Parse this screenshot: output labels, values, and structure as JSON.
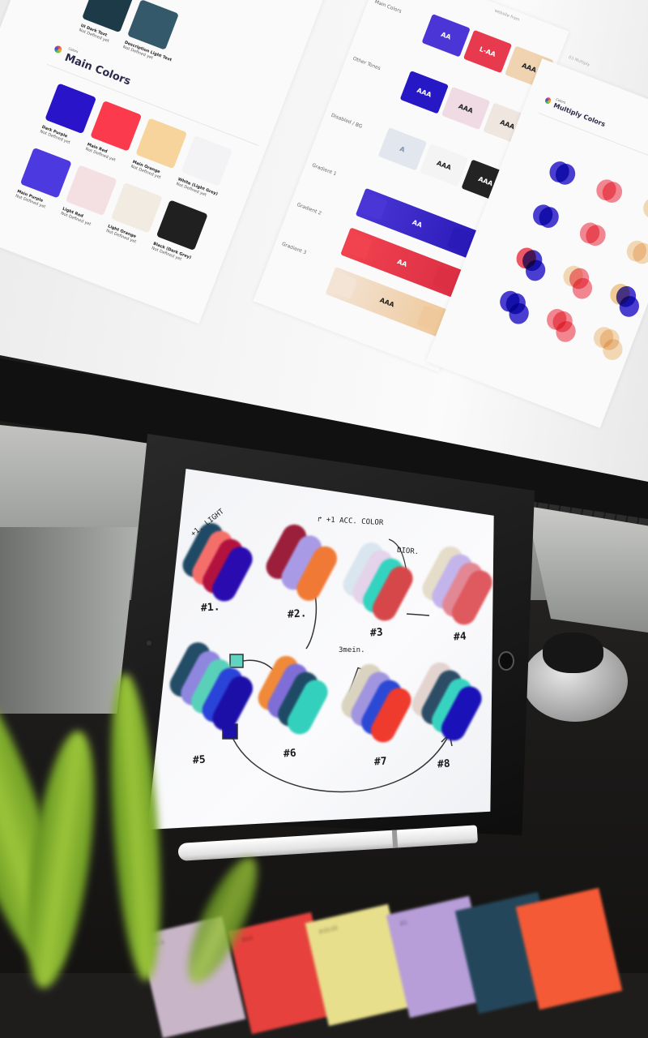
{
  "monitor": {
    "card_left": {
      "top_swatches": [
        {
          "name": "UI Dark Text",
          "note": "Not Defined yet",
          "color": "#1d3a48"
        },
        {
          "name": "Description Light Text",
          "note": "Not Defined yet",
          "color": "#33596a"
        }
      ],
      "section_kicker": "Colors",
      "title": "Main Colors",
      "swatches": [
        {
          "name": "Dark Purple",
          "note": "Not Defined yet",
          "color": "#2a14c9"
        },
        {
          "name": "Main Red",
          "note": "Not Defined yet",
          "color": "#fb3a4d"
        },
        {
          "name": "Main Orange",
          "note": "Not Defined yet",
          "color": "#f6d49c"
        },
        {
          "name": "White (Light Grey)",
          "note": "Not Defined yet",
          "color": "#f3f3f5"
        },
        {
          "name": "Main Purple",
          "note": "Not Defined yet",
          "color": "#4d39e0"
        },
        {
          "name": "Light Red",
          "note": "Not Defined yet",
          "color": "#f4dfe2"
        },
        {
          "name": "Light Orange",
          "note": "Not Defined yet",
          "color": "#f2ebe1"
        },
        {
          "name": "Black (Dark Grey)",
          "note": "Not Defined yet",
          "color": "#202020"
        }
      ]
    },
    "card_middle": {
      "header_note": "website from",
      "rows": [
        {
          "label": "Main Colors",
          "badges": [
            {
              "text": "AA",
              "bg": "#4b35d6",
              "fg": "#ffffff"
            },
            {
              "text": "L-AA",
              "bg": "#e83a4e",
              "fg": "#ffffff"
            },
            {
              "text": "AAA",
              "bg": "#f0d3b0",
              "fg": "#222222"
            }
          ]
        },
        {
          "label": "Other Tones",
          "badges": [
            {
              "text": "AAA",
              "bg": "#2718c6",
              "fg": "#ffffff"
            },
            {
              "text": "AAA",
              "bg": "#f0dbe4",
              "fg": "#222222"
            },
            {
              "text": "AAA",
              "bg": "#efe6df",
              "fg": "#222222"
            }
          ]
        },
        {
          "label": "Disabled / BG",
          "badges": [
            {
              "text": "A",
              "bg": "#e1e6ef",
              "fg": "#7f93ad"
            },
            {
              "text": "AAA",
              "bg": "#f4f4f5",
              "fg": "#222222"
            },
            {
              "text": "AAA",
              "bg": "#232323",
              "fg": "#ffffff"
            }
          ]
        }
      ],
      "gradients": [
        {
          "label": "Gradient 1",
          "text": "AA",
          "from": "#4a36d6",
          "to": "#2a1ab8",
          "fg": "#ffffff"
        },
        {
          "label": "Gradient 2",
          "text": "AA",
          "from": "#f0424f",
          "to": "#dc2f44",
          "fg": "#ffffff"
        },
        {
          "label": "Gradient 3",
          "text": "AAA",
          "from": "#f3e4d6",
          "to": "#efc99b",
          "fg": "#222222"
        }
      ]
    },
    "card_right": {
      "tab_label": "03 Multiply",
      "kicker": "Colors",
      "title": "Multiply Colors",
      "circle_colors": {
        "blue": "#2a1dcc",
        "red": "#f03a4c",
        "orange": "#f2c48a"
      }
    }
  },
  "ipad_sketch": {
    "annotations": {
      "light": "+1. LIGHT",
      "accent": "↱ +1 ACC. COLOR",
      "dior": "DIOR.",
      "mein": "3mein."
    },
    "blobs": [
      {
        "label": "#1.",
        "colors": [
          "#1f4a66",
          "#f56f6a",
          "#b3123f",
          "#2a0bb0"
        ]
      },
      {
        "label": "#2.",
        "colors": [
          "#9b1f3a",
          "#a99ae6",
          "#f07a35"
        ]
      },
      {
        "label": "#3",
        "colors": [
          "#d9e6ef",
          "#e4d3ea",
          "#34d3bf",
          "#d6474a"
        ]
      },
      {
        "label": "#4",
        "colors": [
          "#e5dcc9",
          "#c3b4ec",
          "#e28895",
          "#de5a5e"
        ]
      },
      {
        "label": "#5",
        "colors": [
          "#234c66",
          "#8f86e0",
          "#59d1b8",
          "#2a43d8",
          "#1c0fa8"
        ]
      },
      {
        "label": "#6",
        "colors": [
          "#f08a3a",
          "#7f6ed8",
          "#1f4a66",
          "#33d1bd"
        ]
      },
      {
        "label": "#7",
        "colors": [
          "#d9d3c0",
          "#a195e0",
          "#2c49d6",
          "#ee3b2e"
        ]
      },
      {
        "label": "#8",
        "colors": [
          "#e4d4d0",
          "#2d4d66",
          "#38d3c0",
          "#1a12b8"
        ]
      }
    ]
  },
  "sticky_notes": [
    {
      "color": "#c9b5c8",
      "text": "#ca"
    },
    {
      "color": "#e7413d",
      "text": "#e6"
    },
    {
      "color": "#e8df8c",
      "text": "#dbd0"
    },
    {
      "color": "#b79ed9",
      "text": "#b"
    },
    {
      "color": "#24465a",
      "text": ""
    },
    {
      "color": "#f45a35",
      "text": ""
    }
  ]
}
